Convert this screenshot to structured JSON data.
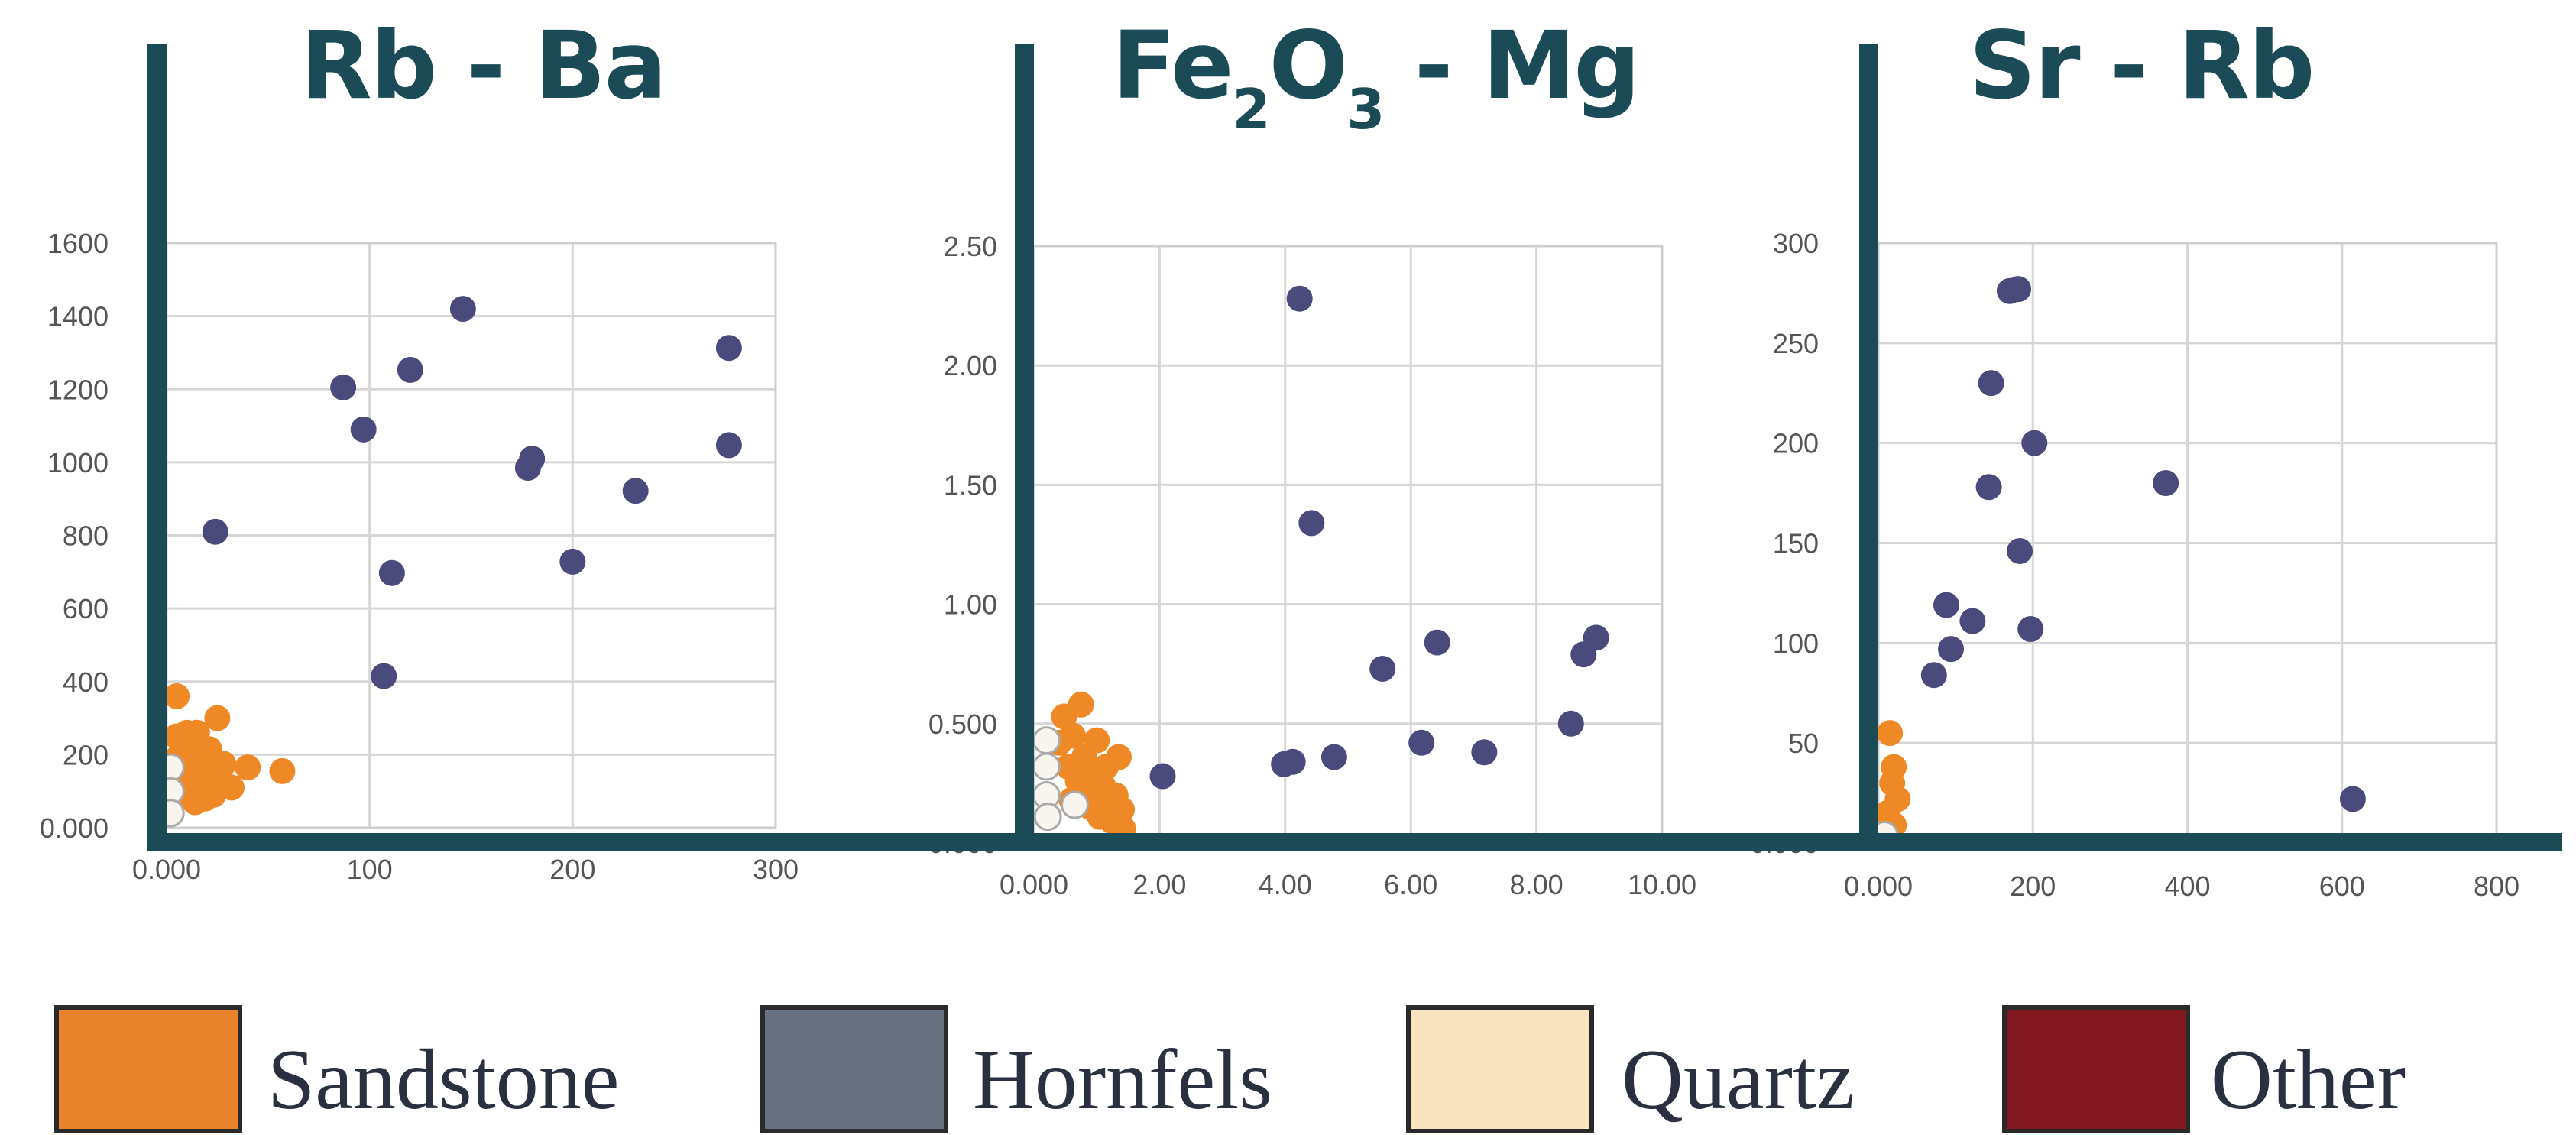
{
  "chart_data": [
    {
      "type": "scatter",
      "title": "Rb - Ba",
      "xlabel": "",
      "ylabel": "",
      "xlim": [
        0,
        300
      ],
      "ylim": [
        0,
        1600
      ],
      "x_ticks": [
        "0.000",
        "100",
        "200",
        "300"
      ],
      "y_ticks": [
        "0.000",
        "200",
        "400",
        "600",
        "800",
        "1000",
        "1200",
        "1400",
        "1600"
      ],
      "grid": true,
      "series": [
        {
          "name": "Hornfels",
          "points": [
            [
              24,
              810
            ],
            [
              87,
              1205
            ],
            [
              97,
              1090
            ],
            [
              107,
              415
            ],
            [
              111,
              697
            ],
            [
              120,
              1253
            ],
            [
              146,
              1420
            ],
            [
              178,
              985
            ],
            [
              180,
              1010
            ],
            [
              200,
              728
            ],
            [
              231,
              922
            ],
            [
              277,
              1313
            ],
            [
              277,
              1047
            ]
          ]
        },
        {
          "name": "Sandstone",
          "points": [
            [
              5,
              360
            ],
            [
              5,
              250
            ],
            [
              6,
              195
            ],
            [
              7,
              140
            ],
            [
              9,
              225
            ],
            [
              9,
              90
            ],
            [
              10,
              260
            ],
            [
              11,
              160
            ],
            [
              12,
              120
            ],
            [
              13,
              200
            ],
            [
              14,
              70
            ],
            [
              15,
              260
            ],
            [
              16,
              185
            ],
            [
              17,
              110
            ],
            [
              18,
              140
            ],
            [
              19,
              80
            ],
            [
              21,
              215
            ],
            [
              22,
              150
            ],
            [
              23,
              90
            ],
            [
              25,
              300
            ],
            [
              27,
              130
            ],
            [
              28,
              175
            ],
            [
              32,
              110
            ],
            [
              40,
              165
            ],
            [
              57,
              155
            ]
          ]
        },
        {
          "name": "Quartz",
          "points": [
            [
              2,
              165
            ],
            [
              2,
              100
            ],
            [
              2,
              40
            ]
          ]
        }
      ]
    },
    {
      "type": "scatter",
      "title": "Fe2O3 - Mg",
      "title_main": "Fe",
      "title_sub1": "2",
      "title_mid": "O",
      "title_sub2": "3",
      "title_tail": " - Mg",
      "xlabel": "",
      "ylabel": "",
      "xlim": [
        0,
        10
      ],
      "ylim": [
        0,
        2.5
      ],
      "x_ticks": [
        "0.000",
        "2.00",
        "4.00",
        "6.00",
        "8.00",
        "10.00"
      ],
      "y_ticks": [
        "0.000",
        "0.500",
        "1.00",
        "1.50",
        "2.00",
        "2.50"
      ],
      "grid": true,
      "series": [
        {
          "name": "Hornfels",
          "points": [
            [
              2.05,
              0.28
            ],
            [
              3.98,
              0.33
            ],
            [
              4.12,
              0.34
            ],
            [
              4.23,
              2.28
            ],
            [
              4.42,
              1.34
            ],
            [
              4.78,
              0.36
            ],
            [
              5.55,
              0.73
            ],
            [
              6.17,
              0.42
            ],
            [
              6.42,
              0.84
            ],
            [
              7.17,
              0.38
            ],
            [
              8.55,
              0.5
            ],
            [
              8.75,
              0.79
            ],
            [
              8.95,
              0.86
            ]
          ]
        },
        {
          "name": "Sandstone",
          "points": [
            [
              0.4,
              0.42
            ],
            [
              0.48,
              0.53
            ],
            [
              0.55,
              0.32
            ],
            [
              0.6,
              0.18
            ],
            [
              0.62,
              0.45
            ],
            [
              0.7,
              0.26
            ],
            [
              0.75,
              0.58
            ],
            [
              0.8,
              0.36
            ],
            [
              0.85,
              0.22
            ],
            [
              0.9,
              0.15
            ],
            [
              0.95,
              0.3
            ],
            [
              1.0,
              0.43
            ],
            [
              1.05,
              0.11
            ],
            [
              1.1,
              0.24
            ],
            [
              1.15,
              0.32
            ],
            [
              1.2,
              0.18
            ],
            [
              1.25,
              0.09
            ],
            [
              1.3,
              0.2
            ],
            [
              1.35,
              0.36
            ],
            [
              1.4,
              0.14
            ],
            [
              1.42,
              0.06
            ]
          ]
        },
        {
          "name": "Quartz",
          "points": [
            [
              0.2,
              0.43
            ],
            [
              0.2,
              0.32
            ],
            [
              0.2,
              0.2
            ],
            [
              0.22,
              0.11
            ],
            [
              0.65,
              0.16
            ]
          ]
        }
      ]
    },
    {
      "type": "scatter",
      "title": "Sr - Rb",
      "xlabel": "",
      "ylabel": "",
      "xlim": [
        0,
        800
      ],
      "ylim": [
        0,
        300
      ],
      "x_ticks": [
        "0.000",
        "200",
        "400",
        "600",
        "800"
      ],
      "y_ticks": [
        "0.000",
        "50",
        "100",
        "150",
        "200",
        "250",
        "300"
      ],
      "grid": true,
      "series": [
        {
          "name": "Hornfels",
          "points": [
            [
              72,
              84
            ],
            [
              88,
              119
            ],
            [
              94,
              97
            ],
            [
              122,
              111
            ],
            [
              143,
              178
            ],
            [
              146,
              230
            ],
            [
              170,
              276
            ],
            [
              181,
              277
            ],
            [
              183,
              146
            ],
            [
              197,
              107
            ],
            [
              202,
              200
            ],
            [
              372,
              180
            ],
            [
              614,
              22
            ]
          ]
        },
        {
          "name": "Sandstone",
          "points": [
            [
              15,
              55
            ],
            [
              20,
              38
            ],
            [
              18,
              30
            ],
            [
              25,
              22
            ],
            [
              12,
              15
            ],
            [
              20,
              9
            ],
            [
              10,
              3
            ]
          ]
        },
        {
          "name": "Quartz",
          "points": [
            [
              8,
              4
            ]
          ]
        }
      ]
    }
  ],
  "legend": {
    "items": [
      {
        "label": "Sandstone",
        "color": "#e8832c"
      },
      {
        "label": "Hornfels",
        "color": "#687180"
      },
      {
        "label": "Quartz",
        "color": "#f7e4bf"
      },
      {
        "label": "Other",
        "color": "#82181f"
      }
    ]
  },
  "colors": {
    "frame": "#1b4b57",
    "Hornfels": "#4b4a7c",
    "Sandstone": "#ee8926",
    "Quartz": "#f8f4ee",
    "quartz_stroke": "#aaaaaa"
  }
}
